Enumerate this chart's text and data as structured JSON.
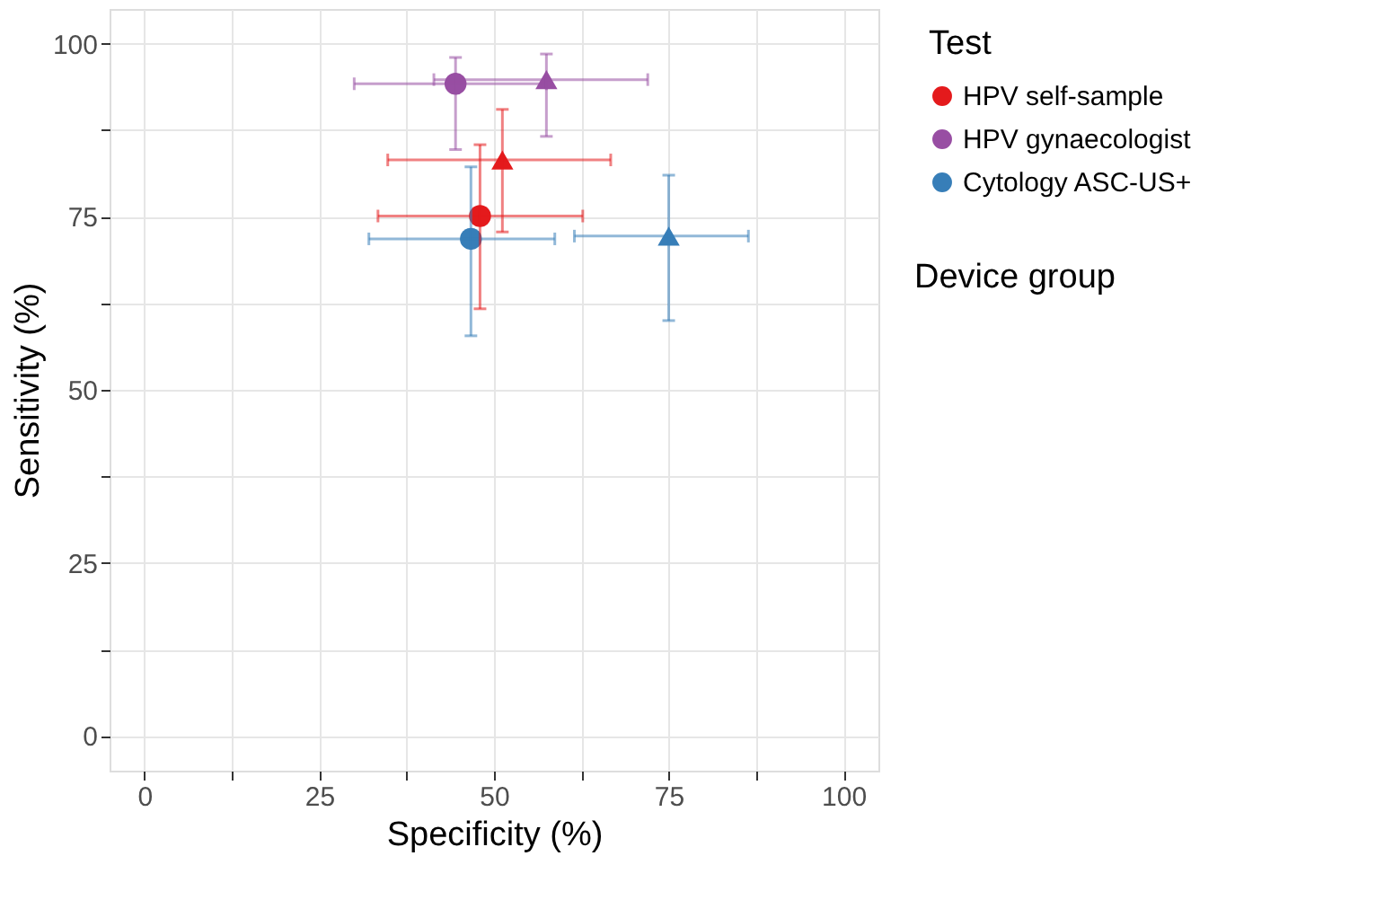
{
  "chart_data": {
    "type": "scatter",
    "xlabel": "Specificity (%)",
    "ylabel": "Sensitivity (%)",
    "legend_title": "Test",
    "legend": "right",
    "grid": true,
    "annotations": [
      "Device group"
    ],
    "xlim": [
      -5,
      105
    ],
    "ylim": [
      -5,
      105
    ],
    "xticks": [
      0,
      {
        "value": 12.5,
        "label": null
      },
      25,
      {
        "value": 37.5,
        "label": null
      },
      50,
      {
        "value": 62.5,
        "label": null
      },
      75,
      {
        "value": 87.5,
        "label": null
      },
      100
    ],
    "yticks": [
      0,
      {
        "value": 12.5,
        "label": null
      },
      25,
      {
        "value": 37.5,
        "label": null
      },
      50,
      {
        "value": 62.5,
        "label": null
      },
      75,
      {
        "value": 87.5,
        "label": null
      },
      100
    ],
    "series": [
      {
        "name": "HPV self-sample",
        "color": "#e41a1c",
        "marker": [
          "circle",
          "triangle"
        ],
        "x": [
          48.0,
          51.2
        ],
        "values": [
          75.1,
          83.2
        ],
        "errors": [
          [
            61.7,
            85.4
          ],
          [
            72.8,
            90.5
          ]
        ],
        "xerrors": [
          [
            33.4,
            62.7
          ],
          [
            34.8,
            66.7
          ]
        ]
      },
      {
        "name": "HPV gynaecologist",
        "color": "#984ea3",
        "marker": [
          "circle",
          "triangle"
        ],
        "x": [
          44.5,
          57.5
        ],
        "values": [
          94.2,
          94.8
        ],
        "errors": [
          [
            84.7,
            98.0
          ],
          [
            86.6,
            98.5
          ]
        ],
        "xerrors": [
          [
            30.0,
            57.5
          ],
          [
            41.4,
            72.0
          ]
        ]
      },
      {
        "name": "Cytology ASC-US+",
        "color": "#377eb8",
        "marker": [
          "circle",
          "triangle"
        ],
        "x": [
          46.7,
          75.0
        ],
        "values": [
          71.8,
          72.2
        ],
        "errors": [
          [
            57.8,
            82.2
          ],
          [
            60.0,
            81.0
          ]
        ],
        "xerrors": [
          [
            32.1,
            58.7
          ],
          [
            61.5,
            86.4
          ]
        ]
      }
    ]
  }
}
